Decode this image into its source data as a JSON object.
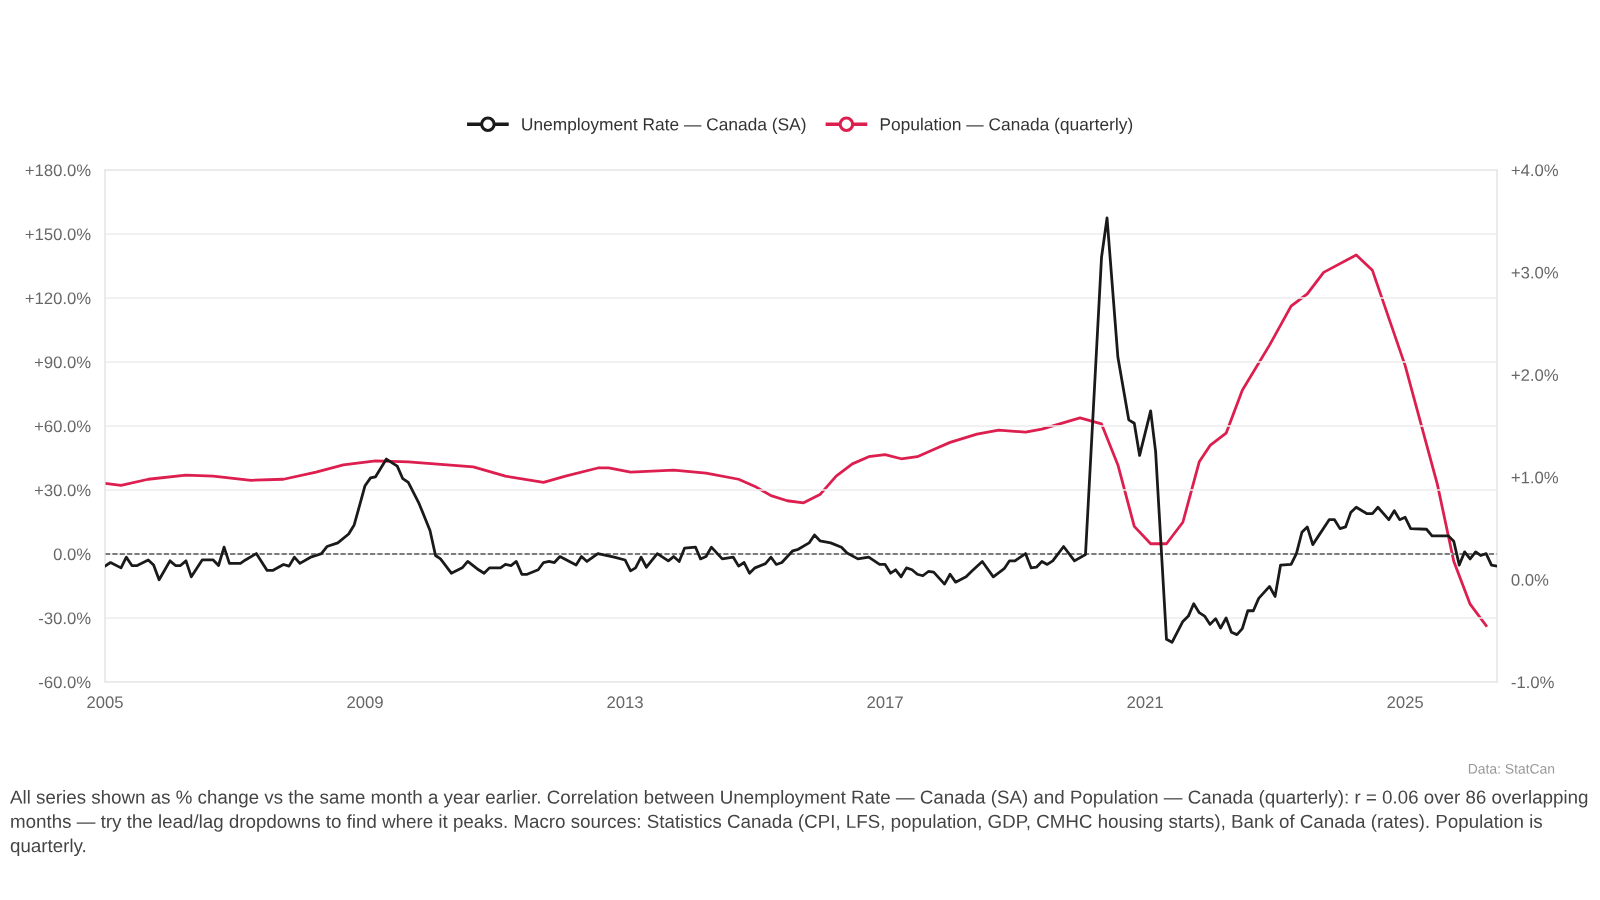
{
  "chart_data": {
    "type": "line",
    "xlim": [
      "2005-01",
      "2026-06"
    ],
    "xticks": [
      "2005",
      "2009",
      "2013",
      "2017",
      "2021",
      "2025"
    ],
    "ylim": [
      -60,
      180
    ],
    "yticks": [
      {
        "value": -60,
        "label": "-60.0%"
      },
      {
        "value": -30,
        "label": "-30.0%"
      },
      {
        "value": 0,
        "label": "0.0%"
      },
      {
        "value": 30,
        "label": "+30.0%"
      },
      {
        "value": 60,
        "label": "+60.0%"
      },
      {
        "value": 90,
        "label": "+90.0%"
      },
      {
        "value": 120,
        "label": "+120.0%"
      },
      {
        "value": 150,
        "label": "+150.0%"
      },
      {
        "value": 180,
        "label": "+180.0%"
      }
    ],
    "y2lim": [
      -1,
      4
    ],
    "y2ticks": [
      {
        "value": -1,
        "label": "-1.0%"
      },
      {
        "value": 0,
        "label": "0.0%"
      },
      {
        "value": 1,
        "label": "+1.0%"
      },
      {
        "value": 2,
        "label": "+2.0%"
      },
      {
        "value": 3,
        "label": "+3.0%"
      },
      {
        "value": 4,
        "label": "+4.0%"
      }
    ],
    "grid": "y",
    "legend": "top",
    "marker": "none",
    "line_style": "solid",
    "ref_lines": [
      {
        "axis": "y",
        "value": 0,
        "color": "#555555",
        "line_style": "dashed"
      }
    ],
    "series": [
      {
        "name": "Unemployment Rate — Canada (SA)",
        "color": "#1a1a1a",
        "x": [
          "2005-01",
          "2005-02",
          "2005-04",
          "2005-05",
          "2005-06",
          "2005-07",
          "2005-09",
          "2005-10",
          "2005-11",
          "2006-01",
          "2006-02",
          "2006-03",
          "2006-04",
          "2006-05",
          "2006-07",
          "2006-09",
          "2006-10",
          "2006-11",
          "2006-12",
          "2007-02",
          "2007-03",
          "2007-05",
          "2007-07",
          "2007-08",
          "2007-10",
          "2007-11",
          "2007-12",
          "2008-01",
          "2008-03",
          "2008-04",
          "2008-05",
          "2008-06",
          "2008-08",
          "2008-10",
          "2008-11",
          "2009-01",
          "2009-02",
          "2009-03",
          "2009-05",
          "2009-07",
          "2009-08",
          "2009-09",
          "2009-11",
          "2010-01",
          "2010-02",
          "2010-03",
          "2010-05",
          "2010-07",
          "2010-08",
          "2010-10",
          "2010-11",
          "2010-12",
          "2011-02",
          "2011-03",
          "2011-04",
          "2011-05",
          "2011-06",
          "2011-07",
          "2011-09",
          "2011-10",
          "2011-11",
          "2011-12",
          "2012-01",
          "2012-04",
          "2012-05",
          "2012-06",
          "2012-08",
          "2012-11",
          "2013-01",
          "2013-02",
          "2013-03",
          "2013-04",
          "2013-05",
          "2013-07",
          "2013-09",
          "2013-10",
          "2013-11",
          "2013-12",
          "2014-02",
          "2014-03",
          "2014-04",
          "2014-05",
          "2014-07",
          "2014-09",
          "2014-10",
          "2014-11",
          "2014-12",
          "2015-01",
          "2015-03",
          "2015-04",
          "2015-05",
          "2015-06",
          "2015-08",
          "2015-09",
          "2015-11",
          "2015-12",
          "2016-01",
          "2016-03",
          "2016-05",
          "2016-06",
          "2016-08",
          "2016-10",
          "2016-12",
          "2017-01",
          "2017-02",
          "2017-03",
          "2017-04",
          "2017-05",
          "2017-06",
          "2017-07",
          "2017-08",
          "2017-09",
          "2017-10",
          "2017-12",
          "2018-01",
          "2018-02",
          "2018-04",
          "2018-05",
          "2018-07",
          "2018-09",
          "2018-11",
          "2018-12",
          "2019-01",
          "2019-03",
          "2019-04",
          "2019-05",
          "2019-06",
          "2019-07",
          "2019-08",
          "2019-10",
          "2019-12",
          "2020-02",
          "2020-05",
          "2020-06",
          "2020-08",
          "2020-10",
          "2020-11",
          "2020-12",
          "2021-02",
          "2021-03",
          "2021-05",
          "2021-06",
          "2021-08",
          "2021-09",
          "2021-10",
          "2021-11",
          "2021-12",
          "2022-01",
          "2022-02",
          "2022-03",
          "2022-04",
          "2022-05",
          "2022-06",
          "2022-07",
          "2022-08",
          "2022-09",
          "2022-10",
          "2022-12",
          "2023-01",
          "2023-02",
          "2023-04",
          "2023-05",
          "2023-06",
          "2023-07",
          "2023-08",
          "2023-11",
          "2023-12",
          "2024-01",
          "2024-02",
          "2024-03",
          "2024-04",
          "2024-06",
          "2024-07",
          "2024-08",
          "2024-10",
          "2024-11",
          "2024-12",
          "2025-01",
          "2025-02",
          "2025-05",
          "2025-06",
          "2025-09",
          "2025-10",
          "2025-11",
          "2025-12",
          "2026-01",
          "2026-02",
          "2026-03",
          "2026-04",
          "2026-05",
          "2026-06"
        ],
        "values": [
          -5.7,
          -4.0,
          -6.5,
          -1.5,
          -5.4,
          -5.4,
          -2.8,
          -5.2,
          -12.1,
          -3.2,
          -5.4,
          -5.4,
          -3.2,
          -10.7,
          -2.8,
          -2.8,
          -5.4,
          3.2,
          -4.4,
          -4.4,
          -2.8,
          0.2,
          -7.7,
          -7.7,
          -4.9,
          -5.7,
          -1.5,
          -4.4,
          -1.5,
          -0.7,
          0.2,
          3.5,
          5.2,
          9.4,
          13.6,
          32.0,
          35.7,
          36.2,
          44.5,
          41.2,
          35.3,
          33.6,
          23.6,
          11.0,
          -0.7,
          -2.3,
          -9.0,
          -6.5,
          -3.5,
          -7.4,
          -9.0,
          -6.5,
          -6.5,
          -4.9,
          -5.4,
          -3.5,
          -9.5,
          -9.5,
          -7.4,
          -4.0,
          -3.5,
          -4.0,
          -1.2,
          -5.2,
          -1.2,
          -3.5,
          0.2,
          -1.5,
          -2.8,
          -7.9,
          -6.5,
          -1.5,
          -6.2,
          0.2,
          -3.2,
          -1.2,
          -3.5,
          2.7,
          3.2,
          -2.3,
          -1.2,
          3.2,
          -2.3,
          -1.5,
          -5.7,
          -4.0,
          -9.0,
          -6.5,
          -4.5,
          -1.5,
          -4.9,
          -4.0,
          1.5,
          2.2,
          5.2,
          8.9,
          6.2,
          5.2,
          3.2,
          0.5,
          -2.3,
          -1.5,
          -4.9,
          -4.9,
          -9.0,
          -7.4,
          -10.7,
          -6.5,
          -7.4,
          -9.5,
          -10.2,
          -8.2,
          -8.5,
          -14.1,
          -9.5,
          -13.2,
          -10.7,
          -8.2,
          -3.5,
          -10.7,
          -6.9,
          -3.2,
          -3.2,
          0.2,
          -6.5,
          -6.2,
          -3.5,
          -4.9,
          -3.2,
          3.5,
          -3.2,
          -0.2,
          139.1,
          157.5,
          92.2,
          62.9,
          61.3,
          46.2,
          67.1,
          47.9,
          -40.0,
          -41.4,
          -31.6,
          -29.1,
          -23.3,
          -27.5,
          -29.1,
          -33.0,
          -30.3,
          -34.7,
          -30.0,
          -36.7,
          -37.8,
          -35.0,
          -26.6,
          -26.6,
          -20.8,
          -15.2,
          -19.9,
          -5.2,
          -4.9,
          0.2,
          10.2,
          12.7,
          4.4,
          16.1,
          16.1,
          11.9,
          12.7,
          19.4,
          21.9,
          18.9,
          18.9,
          21.9,
          16.1,
          20.3,
          16.1,
          17.2,
          11.9,
          11.6,
          8.5,
          8.5,
          6.0,
          -5.2,
          1.0,
          -2.3,
          1.0,
          -0.7,
          0.2,
          -5.2,
          -5.7
        ]
      },
      {
        "name": "Population — Canada (quarterly)",
        "color": "#dc1f4f",
        "axis": "y2",
        "x": [
          "2005-01",
          "2005-04",
          "2005-09",
          "2006-04",
          "2006-09",
          "2007-04",
          "2007-10",
          "2008-04",
          "2008-09",
          "2009-03",
          "2009-09",
          "2010-09",
          "2011-03",
          "2011-10",
          "2012-02",
          "2012-08",
          "2012-10",
          "2013-02",
          "2013-10",
          "2014-04",
          "2014-10",
          "2015-01",
          "2015-04",
          "2015-07",
          "2015-10",
          "2016-01",
          "2016-04",
          "2016-07",
          "2016-10",
          "2017-01",
          "2017-04",
          "2017-07",
          "2017-10",
          "2018-01",
          "2018-06",
          "2018-10",
          "2019-03",
          "2019-06",
          "2020-01",
          "2020-05",
          "2020-08",
          "2020-11",
          "2021-02",
          "2021-05",
          "2021-08",
          "2021-11",
          "2022-01",
          "2022-04",
          "2022-07",
          "2022-12",
          "2023-04",
          "2023-07",
          "2023-10",
          "2024-04",
          "2024-07",
          "2025-01",
          "2025-07",
          "2025-10",
          "2026-01",
          "2026-04"
        ],
        "values": [
          0.94,
          0.92,
          0.98,
          1.02,
          1.01,
          0.97,
          0.98,
          1.05,
          1.12,
          1.16,
          1.15,
          1.1,
          1.01,
          0.95,
          1.01,
          1.09,
          1.09,
          1.05,
          1.07,
          1.04,
          0.98,
          0.91,
          0.82,
          0.77,
          0.75,
          0.83,
          1.01,
          1.13,
          1.2,
          1.22,
          1.18,
          1.2,
          1.27,
          1.34,
          1.42,
          1.46,
          1.44,
          1.47,
          1.58,
          1.52,
          1.12,
          0.52,
          0.35,
          0.35,
          0.56,
          1.15,
          1.31,
          1.43,
          1.85,
          2.29,
          2.67,
          2.79,
          3.0,
          3.17,
          3.02,
          2.09,
          0.93,
          0.18,
          -0.24,
          -0.45
        ]
      }
    ],
    "annotations": [
      "All series shown as % change vs the same month a year earlier. Correlation between Unemployment Rate — Canada (SA) and Population — Canada (quarterly): r = 0.06 over 86 overlapping months — try the lead/lag dropdowns to find where it peaks. Macro sources: Statistics Canada (CPI, LFS, population, GDP, CMHC housing starts), Bank of Canada (rates). Population is quarterly.",
      "Data: StatCan"
    ]
  }
}
